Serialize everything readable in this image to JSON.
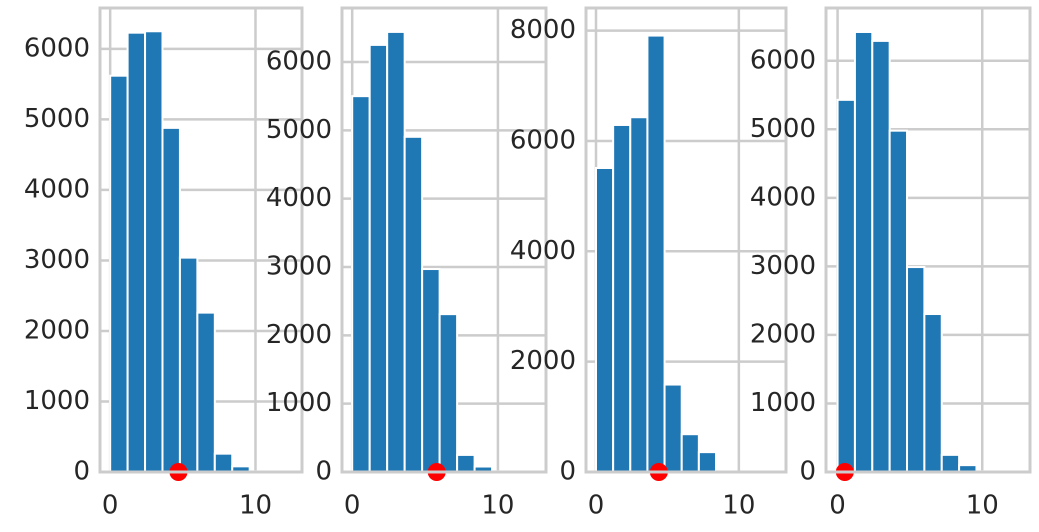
{
  "chart_data": [
    {
      "type": "histogram",
      "color": "#1f77b4",
      "bins": [
        0,
        1.2,
        2.4,
        3.6,
        4.8,
        6,
        7.2,
        8.4,
        9.6,
        10.8,
        12
      ],
      "values": [
        5620,
        6230,
        6250,
        4880,
        3040,
        2260,
        260,
        80,
        10,
        2
      ],
      "xlim": [
        -0.7,
        13.2
      ],
      "ylim": [
        0,
        6580
      ],
      "xticks": [
        0,
        10
      ],
      "yticks": [
        0,
        1000,
        2000,
        3000,
        4000,
        5000,
        6000
      ],
      "grid": true,
      "points": {
        "x": [
          4.7
        ],
        "y": [
          0
        ],
        "color": "#ff0000"
      }
    },
    {
      "type": "histogram",
      "color": "#1f77b4",
      "bins": [
        0,
        1.2,
        2.4,
        3.6,
        4.8,
        6,
        7.2,
        8.4,
        9.6,
        10.8,
        12
      ],
      "values": [
        5500,
        6250,
        6440,
        4905,
        2970,
        2310,
        250,
        80,
        10,
        2
      ],
      "xlim": [
        -0.7,
        13.3
      ],
      "ylim": [
        0,
        6790
      ],
      "xticks": [
        0,
        10
      ],
      "yticks": [
        0,
        1000,
        2000,
        3000,
        4000,
        5000,
        6000
      ],
      "grid": true,
      "points": {
        "x": [
          5.8
        ],
        "y": [
          0
        ],
        "color": "#ff0000"
      }
    },
    {
      "type": "histogram",
      "color": "#1f77b4",
      "bins": [
        0,
        1.2,
        2.4,
        3.6,
        4.8,
        6,
        7.2,
        8.4
      ],
      "values": [
        5510,
        6290,
        6430,
        7910,
        1585,
        685,
        360
      ],
      "xlim": [
        -0.7,
        13.3
      ],
      "ylim": [
        0,
        8410
      ],
      "xticks": [
        0,
        10
      ],
      "yticks": [
        0,
        2000,
        4000,
        6000,
        8000
      ],
      "grid": true,
      "points": {
        "x": [
          4.4
        ],
        "y": [
          0
        ],
        "color": "#ff0000"
      }
    },
    {
      "type": "histogram",
      "color": "#1f77b4",
      "bins": [
        0,
        1.2,
        2.4,
        3.6,
        4.8,
        6,
        7.2,
        8.4,
        9.6,
        10.8,
        12
      ],
      "values": [
        5430,
        6420,
        6290,
        4980,
        2990,
        2305,
        250,
        100,
        10,
        2
      ],
      "xlim": [
        -0.8,
        13.3
      ],
      "ylim": [
        0,
        6770
      ],
      "xticks": [
        0,
        10
      ],
      "yticks": [
        0,
        1000,
        2000,
        3000,
        4000,
        5000,
        6000
      ],
      "grid": true,
      "points": {
        "x": [
          0.5
        ],
        "y": [
          0
        ],
        "color": "#ff0000"
      }
    }
  ]
}
